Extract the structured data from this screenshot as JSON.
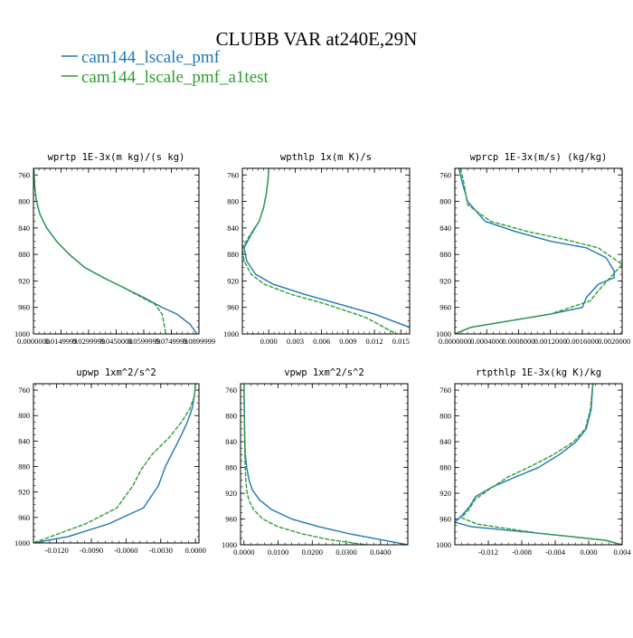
{
  "title": "CLUBB VAR at240E,29N",
  "legend": [
    {
      "name": "cam144_lscale_pmf",
      "color": "#1f77b4"
    },
    {
      "name": "cam144_lscale_pmf_a1test",
      "color": "#2ca02c"
    }
  ],
  "chart_data": [
    {
      "type": "line",
      "title": "wprtp  1E-3x(m kg)/(s kg)",
      "ylim": [
        1000,
        750
      ],
      "yticks": [
        "760",
        "800",
        "840",
        "880",
        "920",
        "960",
        "1000"
      ],
      "ytick_values": [
        760,
        800,
        840,
        880,
        920,
        960,
        1000
      ],
      "xlim": [
        0,
        0.09
      ],
      "xticks": [
        "0.0000000",
        "0.0149999",
        "0.0299999",
        "0.0450000",
        "0.0599999",
        "0.0749999",
        "0.0899999"
      ],
      "xtick_values": [
        0,
        0.015,
        0.03,
        0.045,
        0.06,
        0.075,
        0.09
      ],
      "series": [
        {
          "name": "cam144_lscale_pmf",
          "color": "#1f77b4",
          "x": [
            0.0002,
            0.0006,
            0.0016,
            0.0036,
            0.0072,
            0.0125,
            0.0195,
            0.028,
            0.038,
            0.049,
            0.06,
            0.07,
            0.078,
            0.085,
            0.089
          ],
          "y": [
            750,
            775,
            800,
            820,
            840,
            860,
            880,
            900,
            915,
            930,
            945,
            960,
            970,
            985,
            1000
          ]
        },
        {
          "name": "cam144_lscale_pmf_a1test",
          "color": "#2ca02c",
          "x": [
            0.0002,
            0.0006,
            0.0016,
            0.0036,
            0.0072,
            0.0125,
            0.0195,
            0.028,
            0.038,
            0.049,
            0.059,
            0.066,
            0.07,
            0.072
          ],
          "y": [
            750,
            775,
            800,
            820,
            840,
            860,
            880,
            900,
            915,
            930,
            945,
            955,
            970,
            1000
          ]
        }
      ]
    },
    {
      "type": "line",
      "title": "wpthlp  1x(m K)/s",
      "ylim": [
        1000,
        750
      ],
      "yticks": [
        "760",
        "800",
        "840",
        "880",
        "920",
        "960",
        "1000"
      ],
      "ytick_values": [
        760,
        800,
        840,
        880,
        920,
        960,
        1000
      ],
      "xlim": [
        -0.003,
        0.016
      ],
      "xticks": [
        "0.000",
        "0.003",
        "0.006",
        "0.009",
        "0.012",
        "0.015"
      ],
      "xtick_values": [
        0,
        0.003,
        0.006,
        0.009,
        0.012,
        0.015
      ],
      "series": [
        {
          "name": "cam144_lscale_pmf",
          "color": "#1f77b4",
          "x": [
            0.0,
            -0.0001,
            -0.0003,
            -0.0006,
            -0.0011,
            -0.002,
            -0.0028,
            -0.0025,
            -0.0015,
            0.0005,
            0.004,
            0.008,
            0.012,
            0.016
          ],
          "y": [
            750,
            770,
            790,
            810,
            830,
            850,
            870,
            890,
            910,
            925,
            940,
            955,
            970,
            990
          ]
        },
        {
          "name": "cam144_lscale_pmf_a1test",
          "color": "#2ca02c",
          "x": [
            0.0,
            -0.0001,
            -0.0003,
            -0.0006,
            -0.0011,
            -0.0021,
            -0.003,
            -0.0028,
            -0.002,
            -0.0005,
            0.0025,
            0.0065,
            0.011,
            0.0145
          ],
          "y": [
            750,
            770,
            790,
            810,
            830,
            850,
            870,
            890,
            910,
            925,
            940,
            955,
            975,
            1000
          ]
        }
      ]
    },
    {
      "type": "line",
      "title": "wprcp  1E-3x(m/s) (kg/kg)",
      "ylim": [
        1000,
        750
      ],
      "yticks": [
        "760",
        "800",
        "840",
        "880",
        "920",
        "960",
        "1000"
      ],
      "ytick_values": [
        760,
        800,
        840,
        880,
        920,
        960,
        1000
      ],
      "xlim": [
        0,
        0.0021
      ],
      "xticks": [
        "0.0000000",
        "0.0004000",
        "0.0008000",
        "0.0012000",
        "0.0016000",
        "0.0020000"
      ],
      "xtick_values": [
        0,
        0.0004,
        0.0008,
        0.0012,
        0.0016,
        0.002
      ],
      "series": [
        {
          "name": "cam144_lscale_pmf",
          "color": "#1f77b4",
          "x": [
            5e-05,
            9e-05,
            0.00016,
            0.00038,
            0.00075,
            0.0012,
            0.00165,
            0.0019,
            0.002,
            0.002,
            0.0018,
            0.00165,
            0.0016,
            0.0012,
            0.0002,
            0.0
          ],
          "y": [
            750,
            770,
            800,
            830,
            845,
            860,
            870,
            885,
            905,
            915,
            925,
            945,
            960,
            970,
            990,
            1000
          ]
        },
        {
          "name": "cam144_lscale_pmf_a1test",
          "color": "#2ca02c",
          "x": [
            7e-05,
            0.00011,
            0.00016,
            0.00045,
            0.0009,
            0.0014,
            0.0018,
            0.0021,
            0.00195,
            0.0018,
            0.0017,
            0.0012,
            0.0002,
            0.0
          ],
          "y": [
            750,
            770,
            805,
            830,
            845,
            858,
            870,
            895,
            915,
            935,
            950,
            970,
            990,
            1000
          ]
        }
      ]
    },
    {
      "type": "line",
      "title": "upwp  1xm^2/s^2",
      "ylim": [
        1000,
        750
      ],
      "yticks": [
        "760",
        "800",
        "840",
        "880",
        "920",
        "960",
        "1000"
      ],
      "ytick_values": [
        760,
        800,
        840,
        880,
        920,
        960,
        1000
      ],
      "xlim": [
        -0.014,
        0.0003
      ],
      "xticks": [
        "-0.0120",
        "-0.0090",
        "-0.0060",
        "-0.0030",
        "0.0000"
      ],
      "xtick_values": [
        -0.012,
        -0.009,
        -0.006,
        -0.003,
        0
      ],
      "series": [
        {
          "name": "cam144_lscale_pmf",
          "color": "#1f77b4",
          "x": [
            0.0,
            -0.0001,
            -0.0003,
            -0.0007,
            -0.0012,
            -0.0019,
            -0.0026,
            -0.0032,
            -0.0045,
            -0.0075,
            -0.011,
            -0.014
          ],
          "y": [
            750,
            770,
            790,
            810,
            830,
            855,
            880,
            910,
            945,
            970,
            990,
            1000
          ]
        },
        {
          "name": "cam144_lscale_pmf_a1test",
          "color": "#2ca02c",
          "x": [
            0.0,
            -0.0001,
            -0.0005,
            -0.0012,
            -0.0023,
            -0.0037,
            -0.0047,
            -0.0054,
            -0.0068,
            -0.0095,
            -0.0125,
            -0.014
          ],
          "y": [
            750,
            770,
            790,
            810,
            835,
            860,
            885,
            910,
            945,
            970,
            990,
            1000
          ]
        }
      ]
    },
    {
      "type": "line",
      "title": "vpwp  1xm^2/s^2",
      "ylim": [
        1000,
        750
      ],
      "yticks": [
        "760",
        "800",
        "840",
        "880",
        "920",
        "960",
        "1000"
      ],
      "ytick_values": [
        760,
        800,
        840,
        880,
        920,
        960,
        1000
      ],
      "xlim": [
        -0.001,
        0.048
      ],
      "xticks": [
        "0.0000",
        "0.0100",
        "0.0200",
        "0.0300",
        "0.0400"
      ],
      "xtick_values": [
        0,
        0.01,
        0.02,
        0.03,
        0.04
      ],
      "series": [
        {
          "name": "cam144_lscale_pmf",
          "color": "#1f77b4",
          "x": [
            0.0,
            0.0001,
            0.0002,
            0.0004,
            0.0008,
            0.0015,
            0.0025,
            0.0045,
            0.008,
            0.014,
            0.022,
            0.031,
            0.04,
            0.048
          ],
          "y": [
            750,
            790,
            830,
            860,
            880,
            900,
            915,
            930,
            945,
            960,
            972,
            983,
            992,
            1000
          ]
        },
        {
          "name": "cam144_lscale_pmf_a1test",
          "color": "#2ca02c",
          "x": [
            0.0,
            0.0001,
            0.0002,
            0.0003,
            0.0005,
            0.0008,
            0.0014,
            0.0028,
            0.0055,
            0.01,
            0.017,
            0.025,
            0.033,
            0.039
          ],
          "y": [
            750,
            790,
            830,
            870,
            895,
            915,
            930,
            945,
            960,
            972,
            983,
            992,
            998,
            1002
          ]
        }
      ]
    },
    {
      "type": "line",
      "title": "rtpthlp  1E-3x(kg K)/kg",
      "ylim": [
        1000,
        750
      ],
      "yticks": [
        "760",
        "800",
        "840",
        "880",
        "920",
        "960",
        "1000"
      ],
      "ytick_values": [
        760,
        800,
        840,
        880,
        920,
        960,
        1000
      ],
      "xlim": [
        -0.016,
        0.004
      ],
      "xticks": [
        "-0.012",
        "-0.008",
        "-0.004",
        "0.000",
        "0.004"
      ],
      "xtick_values": [
        -0.012,
        -0.008,
        -0.004,
        0,
        0.004
      ],
      "series": [
        {
          "name": "cam144_lscale_pmf",
          "color": "#1f77b4",
          "x": [
            0.0005,
            0.0003,
            -0.0003,
            -0.0015,
            -0.0035,
            -0.006,
            -0.0088,
            -0.0115,
            -0.0135,
            -0.0142,
            -0.0152,
            -0.016,
            -0.014,
            -0.006,
            0.002,
            0.004
          ],
          "y": [
            750,
            790,
            820,
            840,
            860,
            880,
            895,
            910,
            925,
            940,
            955,
            965,
            972,
            982,
            993,
            1000
          ]
        },
        {
          "name": "cam144_lscale_pmf_a1test",
          "color": "#2ca02c",
          "x": [
            0.0005,
            0.0002,
            -0.0004,
            -0.0018,
            -0.0042,
            -0.0072,
            -0.0097,
            -0.012,
            -0.0136,
            -0.0143,
            -0.0152,
            -0.0133,
            -0.006,
            0.002,
            0.004
          ],
          "y": [
            750,
            790,
            820,
            840,
            860,
            880,
            895,
            915,
            930,
            945,
            958,
            968,
            982,
            993,
            1000
          ]
        }
      ]
    }
  ]
}
